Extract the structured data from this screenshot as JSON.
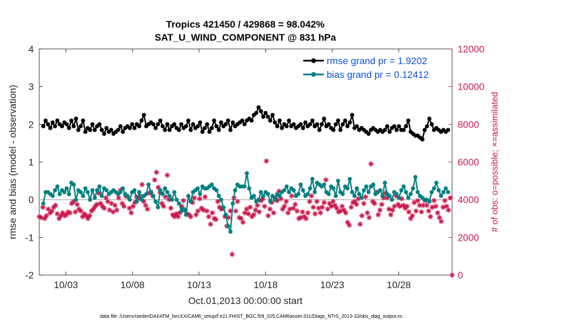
{
  "chart_data": {
    "type": "line",
    "title_line1": "Tropics 421450 / 429868 = 98.042%",
    "title_line2": "SAT_U_WIND_COMPONENT @ 831 hPa",
    "xlabel": "Oct.01,2013 00:00:00 start",
    "ylabel_left": "rmse and bias (model - observation)",
    "ylabel_right": "# of obs: o=possible; ×=assimilated",
    "x_ticks": [
      "10/03",
      "10/08",
      "10/13",
      "10/18",
      "10/23",
      "10/28"
    ],
    "x_tick_days": [
      3,
      8,
      13,
      18,
      23,
      28
    ],
    "xlim": [
      1,
      32
    ],
    "ylim_left": [
      -2,
      4
    ],
    "y_ticks_left": [
      "-2",
      "-1",
      "0",
      "1",
      "2",
      "3",
      "4"
    ],
    "ylim_right": [
      0,
      12000
    ],
    "y_ticks_right": [
      "0",
      "2000",
      "4000",
      "6000",
      "8000",
      "10000",
      "12000"
    ],
    "legend": [
      {
        "name": "rmse grand pr = 1.9202",
        "color": "#000000"
      },
      {
        "name": "bias grand pr = 0.12412",
        "color": "#008080"
      }
    ],
    "colors": {
      "rmse": "#000000",
      "bias": "#008080",
      "obs": "#c8174b",
      "zero": "#bfbfbf"
    },
    "series": [
      {
        "name": "rmse",
        "values": [
          1.95,
          2.1,
          2.0,
          1.9,
          2.05,
          1.95,
          2.1,
          2.0,
          1.95,
          2.05,
          2.0,
          1.9,
          2.1,
          1.95,
          2.15,
          1.85,
          1.95,
          2.1,
          1.8,
          1.9,
          1.85,
          2.0,
          1.85,
          1.95,
          2.0,
          1.85,
          1.75,
          1.9,
          1.8,
          1.85,
          1.75,
          1.8,
          1.85,
          1.95,
          1.8,
          1.9,
          1.95,
          1.9,
          2.0,
          1.9,
          2.0,
          1.95,
          2.1,
          2.25,
          1.95,
          2.0,
          2.05,
          2.0,
          1.9,
          2.0,
          2.1,
          1.95,
          1.85,
          2.0,
          1.85,
          1.95,
          2.0,
          1.9,
          1.85,
          2.0,
          1.9,
          1.95,
          2.1,
          1.85,
          2.0,
          1.9,
          1.95,
          2.05,
          1.8,
          1.9,
          2.0,
          1.8,
          1.9,
          2.1,
          1.95,
          1.85,
          2.05,
          1.95,
          2.0,
          2.1,
          1.85,
          2.05,
          1.95,
          2.0,
          2.05,
          2.1,
          2.0,
          2.1,
          2.15,
          2.1,
          2.25,
          2.3,
          2.45,
          2.35,
          2.2,
          2.3,
          2.2,
          2.1,
          2.25,
          2.05,
          1.95,
          2.1,
          1.9,
          2.0,
          1.95,
          2.1,
          1.95,
          2.0,
          1.9,
          1.95,
          2.0,
          1.9,
          2.05,
          1.95,
          2.0,
          2.1,
          1.95,
          2.0,
          1.85,
          2.0,
          2.15,
          1.95,
          2.0,
          1.9,
          1.85,
          2.0,
          2.1,
          1.85,
          2.0,
          2.1,
          1.95,
          2.05,
          2.25,
          1.9,
          1.95,
          1.85,
          1.9,
          1.85,
          1.8,
          1.75,
          1.85,
          1.9,
          1.85,
          1.8,
          1.85,
          1.8,
          1.85,
          1.95,
          1.8,
          1.9,
          1.95,
          1.85,
          1.95,
          1.85,
          1.85,
          1.95,
          2.1,
          1.8,
          1.75,
          1.7,
          1.7,
          1.65,
          1.6,
          1.85,
          1.95,
          2.15,
          2.0,
          1.85,
          1.9,
          1.85,
          1.8,
          1.85,
          1.8,
          1.85
        ]
      },
      {
        "name": "bias",
        "values": [
          -0.1,
          0.2,
          0.2,
          0.15,
          0.1,
          0.25,
          0.35,
          0.15,
          0.25,
          0.2,
          0.3,
          0.15,
          0.45,
          0.4,
          0.0,
          0.25,
          0.2,
          0.1,
          0.3,
          0.2,
          0.0,
          0.25,
          0.05,
          0.25,
          0.35,
          0.1,
          0.3,
          0.25,
          0.15,
          0.2,
          0.25,
          0.2,
          0.15,
          0.2,
          0.3,
          0.15,
          0.1,
          0.0,
          0.2,
          0.25,
          -0.05,
          0.2,
          0.0,
          0.1,
          0.15,
          0.4,
          0.2,
          0.1,
          -0.05,
          -0.2,
          0.25,
          0.15,
          0.3,
          0.2,
          0.1,
          0.0,
          0.2,
          0.0,
          -0.1,
          -0.3,
          -0.25,
          -0.4,
          0.1,
          -0.05,
          0.2,
          0.25,
          0.3,
          0.15,
          0.35,
          0.3,
          0.3,
          0.35,
          0.4,
          0.3,
          0.25,
          0.1,
          0.0,
          -0.2,
          -0.4,
          -0.7,
          -0.85,
          -0.1,
          0.25,
          0.4,
          0.35,
          0.35,
          0.35,
          0.7,
          0.3,
          0.05,
          0.1,
          -0.05,
          0.0,
          0.2,
          0.1,
          0.2,
          0.15,
          -0.05,
          0.1,
          0.0,
          0.15,
          0.1,
          0.2,
          0.25,
          0.35,
          0.2,
          0.3,
          0.25,
          0.1,
          0.15,
          0.4,
          0.25,
          0.1,
          0.15,
          0.3,
          0.55,
          0.2,
          0.45,
          0.4,
          0.35,
          0.4,
          0.2,
          0.15,
          0.35,
          0.3,
          0.1,
          0.5,
          0.2,
          0.15,
          0.35,
          0.3,
          0.55,
          0.2,
          0.1,
          0.3,
          0.15,
          0.05,
          0.25,
          0.35,
          0.2,
          0.35,
          0.4,
          0.15,
          0.2,
          0.25,
          0.1,
          0.45,
          0.15,
          0.1,
          0.0,
          0.2,
          0.15,
          0.05,
          0.25,
          0.35,
          0.2,
          0.05,
          0.15,
          0.3,
          0.6,
          0.2,
          0.1,
          0.05,
          0.0,
          0.0,
          -0.05,
          0.2,
          0.3,
          0.45,
          0.25,
          0.1,
          0.2,
          0.3,
          0.2
        ]
      },
      {
        "name": "obs_possible",
        "values": [
          3100,
          3050,
          3600,
          3000,
          3150,
          3500,
          3300,
          3400,
          3600,
          3700,
          3250,
          3000,
          3150,
          3300,
          3150,
          3200,
          3350,
          3300,
          3800,
          3900,
          3350,
          3750,
          3500,
          3400,
          3100,
          3250,
          3150,
          3000,
          3150,
          3400,
          3500,
          3650,
          3750,
          4350,
          3800,
          3650,
          3550,
          4100,
          3900,
          3450,
          3800,
          3350,
          3700,
          3450,
          4100,
          4500,
          3800,
          3650,
          4200,
          4150,
          3550,
          3300,
          3650,
          3850,
          4150,
          4050,
          4200,
          4800,
          3900,
          3700,
          3500,
          4350,
          4400,
          4200,
          5050,
          5450,
          4650,
          4400,
          3800,
          3650,
          4150,
          5300,
          4000,
          3550,
          3200,
          3100,
          3250,
          3100,
          3300,
          3650,
          3950,
          3450,
          3250,
          3200,
          3100,
          3850,
          4100,
          3200,
          3400,
          4050,
          3550,
          3450,
          4150,
          3400,
          3100,
          2700,
          3300,
          3000,
          2950,
          3900,
          3600,
          3500,
          3550,
          3100,
          2600,
          3050,
          3400,
          1100,
          4100,
          3400,
          3900,
          3050,
          3000,
          2800,
          3300,
          3500,
          3250,
          3600,
          3100,
          3200,
          3450,
          3700,
          3350,
          3950,
          4050,
          3650,
          6050,
          3150,
          3500,
          3850,
          3300,
          4100,
          3950,
          4450,
          4050,
          3500,
          3650,
          3900,
          3300,
          3500,
          4200,
          3550,
          3750,
          3400,
          3000,
          3050,
          3350,
          3100,
          3000,
          3300,
          3900,
          4200,
          3600,
          3250,
          3900,
          3550,
          3300,
          3600,
          3850,
          5050,
          3500,
          3800,
          3650,
          3900,
          3700,
          3550,
          3350,
          3400,
          3650,
          3450,
          3300,
          2800,
          2650,
          3600,
          3850,
          3900,
          3750,
          4050,
          2700,
          3150,
          3800,
          4150,
          3300,
          3050,
          5900,
          3900,
          3800,
          4400,
          3200,
          3450,
          3750,
          4100,
          4350,
          4100,
          3500,
          3200,
          3450,
          3650,
          4200,
          3750,
          3650,
          4050,
          3700,
          3550,
          3650,
          3350,
          3000,
          3150,
          3850,
          3400,
          3950,
          3700,
          3350,
          3700,
          3950,
          3700,
          3400,
          3100,
          3600,
          3950,
          3650,
          3300,
          3050,
          2850,
          3600,
          3950,
          3650,
          3450,
          4100,
          0
        ],
        "marker": "asterisk"
      }
    ]
  },
  "footer_text": "data file: /Users/raeder/DAI/ATM_forcXX/CAM6_setup/f.e21.FHIST_BGC.f09_025.CAM6assim.011/Diags_NTrS_2013-10/obs_diag_output.nc"
}
